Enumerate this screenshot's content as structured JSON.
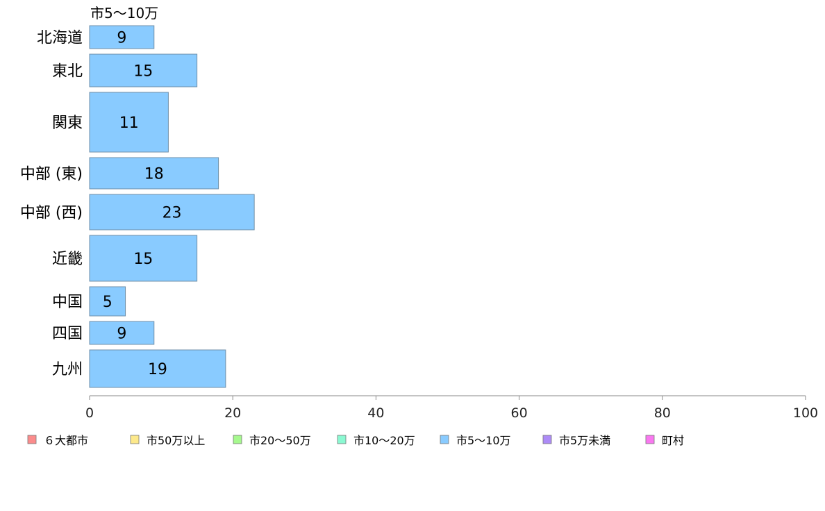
{
  "chart_data": {
    "type": "bar",
    "orientation": "horizontal",
    "title": "市5〜10万",
    "categories": [
      "北海道",
      "東北",
      "関東",
      "中部 (東)",
      "中部 (西)",
      "近畿",
      "中国",
      "四国",
      "九州"
    ],
    "series": [
      {
        "name": "市5〜10万",
        "values": [
          9,
          15,
          11,
          18,
          23,
          15,
          5,
          9,
          19
        ],
        "color": "#89cbff"
      }
    ],
    "x_ticks": [
      "0",
      "20",
      "40",
      "60",
      "80",
      "100"
    ],
    "xlim": [
      0,
      100
    ],
    "grid": false,
    "legend_position": "bottom",
    "legend": [
      {
        "label": "６大都市",
        "color": "#fb8c8c"
      },
      {
        "label": "市50万以上",
        "color": "#fde98b"
      },
      {
        "label": "市20〜50万",
        "color": "#a6f98e"
      },
      {
        "label": "市10〜20万",
        "color": "#8bf9d2"
      },
      {
        "label": "市5〜10万",
        "color": "#89cbff"
      },
      {
        "label": "市5万未満",
        "color": "#ad8bf7"
      },
      {
        "label": "町村",
        "color": "#f978f0"
      }
    ]
  }
}
